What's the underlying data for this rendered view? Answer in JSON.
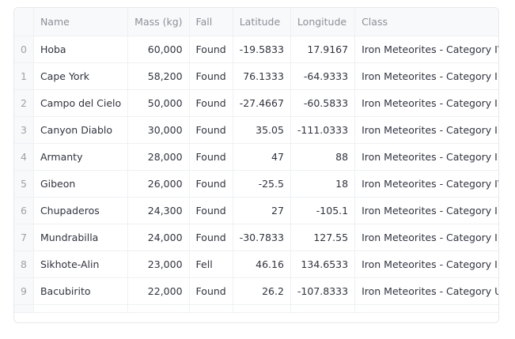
{
  "table": {
    "columns": [
      "",
      "Name",
      "Mass (kg)",
      "Fall",
      "Latitude",
      "Longitude",
      "Class"
    ],
    "rows": [
      {
        "index": "0",
        "name": "Hoba",
        "mass": "60,000",
        "fall": "Found",
        "lat": "-19.5833",
        "lon": "17.9167",
        "class": "Iron Meteorites - Category IV"
      },
      {
        "index": "1",
        "name": "Cape York",
        "mass": "58,200",
        "fall": "Found",
        "lat": "76.1333",
        "lon": "-64.9333",
        "class": "Iron Meteorites - Category I"
      },
      {
        "index": "2",
        "name": "Campo del Cielo",
        "mass": "50,000",
        "fall": "Found",
        "lat": "-27.4667",
        "lon": "-60.5833",
        "class": "Iron Meteorites - Category I"
      },
      {
        "index": "3",
        "name": "Canyon Diablo",
        "mass": "30,000",
        "fall": "Found",
        "lat": "35.05",
        "lon": "-111.0333",
        "class": "Iron Meteorites - Category I"
      },
      {
        "index": "4",
        "name": "Armanty",
        "mass": "28,000",
        "fall": "Found",
        "lat": "47",
        "lon": "88",
        "class": "Iron Meteorites - Category II"
      },
      {
        "index": "5",
        "name": "Gibeon",
        "mass": "26,000",
        "fall": "Found",
        "lat": "-25.5",
        "lon": "18",
        "class": "Iron Meteorites - Category IV"
      },
      {
        "index": "6",
        "name": "Chupaderos",
        "mass": "24,300",
        "fall": "Found",
        "lat": "27",
        "lon": "-105.1",
        "class": "Iron Meteorites - Category I"
      },
      {
        "index": "7",
        "name": "Mundrabilla",
        "mass": "24,000",
        "fall": "Found",
        "lat": "-30.7833",
        "lon": "127.55",
        "class": "Iron Meteorites - Category I"
      },
      {
        "index": "8",
        "name": "Sikhote-Alin",
        "mass": "23,000",
        "fall": "Fell",
        "lat": "46.16",
        "lon": "134.6533",
        "class": "Iron Meteorites - Category I"
      },
      {
        "index": "9",
        "name": "Bacubirito",
        "mass": "22,000",
        "fall": "Found",
        "lat": "26.2",
        "lon": "-107.8333",
        "class": "Iron Meteorites - Category U ("
      }
    ]
  }
}
